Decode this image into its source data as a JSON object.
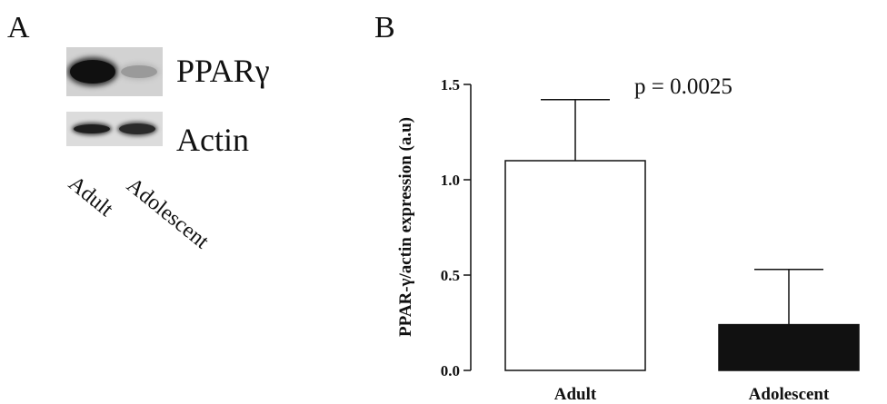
{
  "panel_a": {
    "label": "A",
    "protein_labels": [
      "PPARγ",
      "Actin"
    ],
    "lanes": [
      "Adult",
      "Adolescent"
    ]
  },
  "panel_b": {
    "label": "B"
  },
  "chart_data": {
    "type": "bar",
    "categories": [
      "Adult",
      "Adolescent"
    ],
    "values": [
      1.1,
      0.24
    ],
    "error_upper": [
      0.32,
      0.29
    ],
    "bar_fill": [
      "#ffffff",
      "#111111"
    ],
    "ylabel": "PPAR-γ/actin expression (a.u)",
    "xlabel": "",
    "ylim": [
      0,
      1.5
    ],
    "yticks": [
      "0.0",
      "0.5",
      "1.0",
      "1.5"
    ],
    "annotation": "p = 0.0025",
    "grid": false
  }
}
